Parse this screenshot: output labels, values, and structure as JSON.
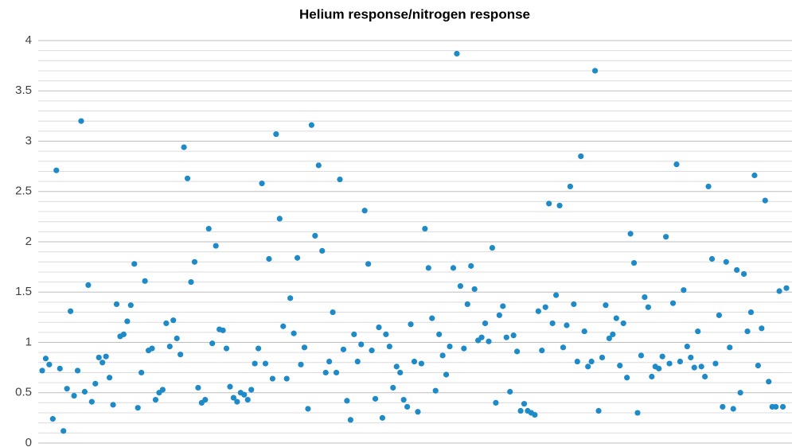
{
  "chart_data": {
    "type": "scatter",
    "title": "Helium response/nitrogen response",
    "values": [
      0.72,
      0.84,
      0.78,
      0.24,
      2.71,
      0.74,
      0.12,
      0.54,
      1.31,
      0.47,
      0.72,
      3.2,
      0.51,
      1.57,
      0.41,
      0.59,
      0.85,
      0.8,
      0.86,
      0.65,
      0.38,
      1.38,
      1.06,
      1.08,
      1.21,
      1.37,
      1.78,
      0.35,
      0.7,
      1.61,
      0.92,
      0.94,
      0.43,
      0.5,
      0.53,
      1.19,
      0.96,
      1.22,
      1.04,
      0.88,
      2.94,
      2.63,
      1.6,
      1.8,
      0.55,
      0.4,
      0.43,
      2.13,
      0.99,
      1.96,
      1.13,
      1.12,
      0.94,
      0.56,
      0.45,
      0.41,
      0.5,
      0.48,
      0.43,
      0.53,
      0.79,
      0.94,
      2.58,
      0.79,
      1.83,
      0.64,
      3.07,
      2.23,
      1.16,
      0.64,
      1.44,
      1.09,
      1.84,
      0.78,
      0.95,
      0.34,
      3.16,
      2.06,
      2.76,
      1.91,
      0.7,
      0.81,
      1.3,
      0.7,
      2.62,
      0.93,
      0.42,
      0.23,
      1.08,
      0.81,
      0.98,
      2.31,
      1.78,
      0.92,
      0.44,
      1.15,
      0.25,
      1.08,
      0.96,
      0.55,
      0.76,
      0.7,
      0.43,
      0.36,
      1.18,
      0.81,
      0.31,
      0.79,
      2.13,
      1.74,
      1.24,
      0.52,
      1.08,
      0.87,
      0.68,
      0.96,
      1.74,
      3.87,
      1.56,
      0.94,
      1.38,
      1.76,
      1.53,
      1.02,
      1.05,
      1.19,
      1.01,
      1.94,
      0.4,
      1.27,
      1.36,
      1.05,
      0.51,
      1.07,
      0.91,
      0.32,
      0.39,
      0.32,
      0.3,
      0.28,
      1.31,
      0.92,
      1.35,
      2.38,
      1.19,
      1.47,
      2.36,
      0.95,
      1.17,
      2.55,
      1.38,
      0.81,
      2.85,
      1.11,
      0.76,
      0.81,
      3.7,
      0.32,
      0.85,
      1.37,
      1.04,
      1.08,
      1.24,
      0.77,
      1.19,
      0.65,
      2.08,
      1.79,
      0.3,
      0.87,
      1.45,
      1.35,
      0.66,
      0.76,
      0.74,
      0.86,
      2.05,
      0.79,
      1.39,
      2.77,
      0.81,
      1.52,
      0.96,
      0.85,
      0.75,
      1.11,
      0.76,
      0.66,
      2.55,
      1.83,
      0.79,
      1.27,
      0.36,
      1.8,
      0.95,
      0.34,
      1.72,
      0.5,
      1.68,
      1.11,
      1.3,
      2.66,
      0.77,
      1.14,
      2.41,
      0.61,
      0.36,
      0.36,
      1.51,
      0.36,
      1.54
    ],
    "color": "#1e8bc8",
    "ylim": [
      0,
      4
    ],
    "yticks": [
      0,
      0.5,
      1,
      1.5,
      2,
      2.5,
      3,
      3.5,
      4
    ],
    "grid": true,
    "minor_grid": true
  }
}
